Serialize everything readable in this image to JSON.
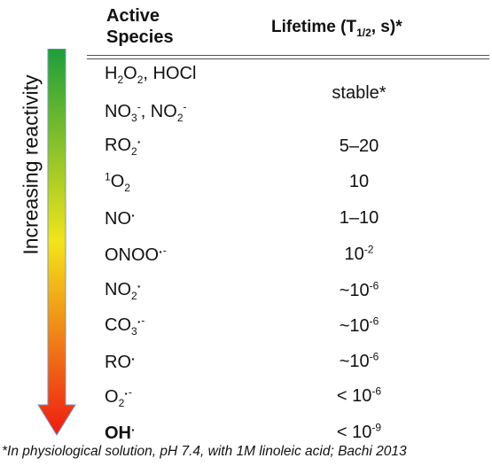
{
  "axis": {
    "label": "Increasing reactivity"
  },
  "header": {
    "species_line1": "Active",
    "species_line2": "Species",
    "lifetime_prefix": "Lifetime (T",
    "lifetime_sub": "1/2",
    "lifetime_suffix": ", s)*"
  },
  "rows": [
    {
      "species": "H2O2, HOCl"
    },
    {
      "species": "NO3-, NO2-",
      "lifetime": "stable*"
    },
    {
      "species": "RO2·",
      "lifetime": "5–20"
    },
    {
      "species": "1O2",
      "lifetime": "10"
    },
    {
      "species": "NO·",
      "lifetime": "1–10"
    },
    {
      "species": "ONOO·-",
      "lifetime": "10-2"
    },
    {
      "species": "NO2·",
      "lifetime": "~10-6"
    },
    {
      "species": "CO3·-",
      "lifetime": "~10-6"
    },
    {
      "species": "RO·",
      "lifetime": "~10-6"
    },
    {
      "species": "O2·-",
      "lifetime": "< 10-6"
    },
    {
      "species": "OH·",
      "lifetime": "< 10-9"
    }
  ],
  "parts": {
    "h2o2": {
      "a": "H",
      "s1": "2",
      "b": "O",
      "s2": "2",
      "c": ", HOCl"
    },
    "no3": {
      "a": "NO",
      "s1": "3",
      "sup1": "-",
      "c": ", NO",
      "s2": "2",
      "sup2": "-"
    },
    "ro2": {
      "a": "RO",
      "s1": "2",
      "dot": "·"
    },
    "singlet": {
      "pre": "1",
      "a": "O",
      "s1": "2"
    },
    "no": {
      "a": "NO",
      "dot": "·"
    },
    "onoo": {
      "a": "ONOO",
      "dot": "·",
      "sup": "-"
    },
    "no2": {
      "a": "NO",
      "s1": "2",
      "dot": "·"
    },
    "co3": {
      "a": "CO",
      "s1": "3",
      "dot": "·",
      "sup": "-"
    },
    "ro": {
      "a": "RO",
      "dot": "·"
    },
    "o2": {
      "a": "O",
      "s1": "2",
      "dot": "·",
      "sup": "-"
    },
    "oh": {
      "a": "OH",
      "dot": "·"
    },
    "life_ex": {
      "onoo": {
        "base": "10",
        "exp": "-2"
      },
      "no2": {
        "base": "~10",
        "exp": "-6"
      },
      "co3": {
        "base": "~10",
        "exp": "-6"
      },
      "ro": {
        "base": "~10",
        "exp": "-6"
      },
      "o2": {
        "base": "< 10",
        "exp": "-6"
      },
      "oh": {
        "base": "< 10",
        "exp": "-9"
      }
    }
  },
  "footnote": "*In physiological solution, pH 7.4, with 1M linoleic acid; Bachi 2013",
  "colors": {
    "arrow_top": "#1e9e3a",
    "arrow_mid": "#f2e41c",
    "arrow_bottom": "#ee1c12"
  }
}
